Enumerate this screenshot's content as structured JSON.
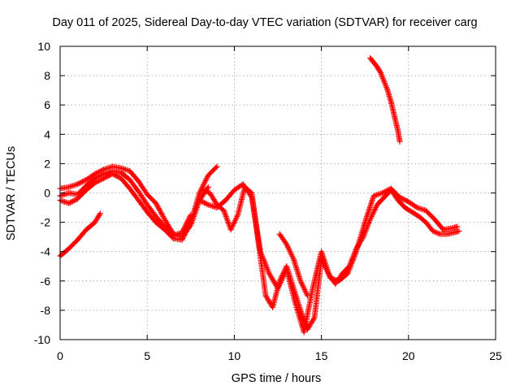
{
  "chart_data": {
    "type": "scatter",
    "title": "Day 011 of 2025, Sidereal Day-to-day VTEC variation (SDTVAR) for receiver carg",
    "xlabel": "GPS time / hours",
    "ylabel": "SDTVAR / TECUs",
    "xlim": [
      0,
      25
    ],
    "ylim": [
      -10,
      10
    ],
    "xticks": [
      "0",
      "5",
      "10",
      "15",
      "20",
      "25"
    ],
    "yticks": [
      "10",
      "8",
      "6",
      "4",
      "2",
      "0",
      "-2",
      "-4",
      "-6",
      "-8",
      "-10"
    ],
    "grid": true,
    "marker": "+",
    "color": "#ff0000",
    "series": [
      {
        "x": [
          0,
          0.5,
          1.0,
          1.5,
          2.0,
          2.3
        ],
        "y": [
          -4.3,
          -3.8,
          -3.2,
          -2.5,
          -2.0,
          -1.4
        ]
      },
      {
        "x": [
          0,
          0.5,
          1.0,
          1.5,
          2.0,
          2.5,
          3.0,
          3.5,
          4.0,
          4.5,
          5.0,
          5.5,
          6.0,
          6.5,
          7.0,
          7.5,
          8.0,
          8.5
        ],
        "y": [
          0.3,
          0.4,
          0.6,
          0.9,
          1.3,
          1.6,
          1.8,
          1.7,
          1.5,
          0.8,
          -0.1,
          -0.7,
          -1.8,
          -2.8,
          -3.0,
          -2.2,
          -0.5,
          0.4
        ]
      },
      {
        "x": [
          0,
          0.5,
          1.0,
          1.5,
          2.0,
          2.5,
          3.0,
          3.5,
          4.0,
          4.5,
          5.0,
          5.5,
          6.0,
          6.5,
          7.0,
          7.5,
          8.0,
          8.5,
          9.0
        ],
        "y": [
          -0.5,
          -0.7,
          -0.4,
          0.2,
          0.7,
          1.0,
          1.3,
          1.0,
          0.3,
          -0.5,
          -1.3,
          -2.0,
          -2.5,
          -3.1,
          -3.2,
          -2.0,
          0.0,
          1.2,
          1.8
        ]
      },
      {
        "x": [
          0,
          0.5,
          1.0,
          1.5,
          2.0,
          2.5,
          3.0,
          3.5,
          4.0,
          4.5,
          5.0,
          5.5,
          6.0,
          6.5,
          7.0,
          7.5
        ],
        "y": [
          -0.2,
          0.0,
          -0.1,
          0.5,
          1.0,
          1.3,
          1.5,
          1.4,
          0.9,
          0.1,
          -0.8,
          -1.6,
          -2.3,
          -2.9,
          -2.7,
          -1.5
        ]
      },
      {
        "x": [
          8.0,
          8.5,
          9.0,
          9.5,
          10.0,
          10.5,
          11.0,
          11.5,
          12.0,
          12.5,
          13.0,
          13.5,
          14.0,
          14.5,
          15.0,
          15.5,
          16.0,
          16.5,
          17.0,
          17.5,
          18.0,
          18.5,
          19.0,
          19.5,
          20.0,
          20.5,
          21.0,
          21.5,
          22.0,
          22.5,
          22.8
        ],
        "y": [
          -0.5,
          -0.8,
          -1.0,
          -0.5,
          0.2,
          0.6,
          -0.3,
          -4.0,
          -5.5,
          -6.5,
          -5.2,
          -7.5,
          -9.5,
          -6.5,
          -4.0,
          -5.8,
          -6.0,
          -5.5,
          -4.0,
          -2.0,
          -0.2,
          0.0,
          0.3,
          -0.3,
          -0.6,
          -1.0,
          -1.2,
          -1.8,
          -2.5,
          -2.4,
          -2.3
        ]
      },
      {
        "x": [
          8.2,
          8.6,
          9.0,
          9.4,
          9.8,
          10.2,
          10.6,
          11.0,
          11.4,
          11.8,
          12.2,
          12.6,
          13.0,
          13.4,
          13.8,
          14.2,
          14.6,
          15.0,
          15.4,
          15.8,
          16.2,
          16.6,
          17.0,
          17.4,
          17.8,
          18.2,
          18.6,
          19.0,
          19.4,
          19.8,
          20.2,
          20.6,
          21.0,
          21.4,
          21.8,
          22.2,
          22.6,
          22.9
        ],
        "y": [
          0.2,
          0.0,
          -0.8,
          -1.2,
          -2.5,
          -1.5,
          0.4,
          0.0,
          -3.5,
          -7.0,
          -7.8,
          -6.0,
          -5.0,
          -6.5,
          -8.0,
          -9.3,
          -8.5,
          -4.5,
          -5.5,
          -6.2,
          -5.5,
          -5.0,
          -3.8,
          -3.0,
          -1.8,
          -0.8,
          -0.3,
          0.2,
          -0.5,
          -1.0,
          -1.3,
          -1.6,
          -2.0,
          -2.6,
          -2.8,
          -2.8,
          -2.7,
          -2.6
        ]
      },
      {
        "x": [
          12.6,
          13.0,
          13.4,
          13.8,
          14.2
        ],
        "y": [
          -2.8,
          -3.5,
          -4.5,
          -6.0,
          -7.0
        ]
      },
      {
        "x": [
          17.8,
          18.0,
          18.2,
          18.4,
          18.6,
          18.8,
          19.0,
          19.2,
          19.4,
          19.5
        ],
        "y": [
          9.2,
          8.9,
          8.6,
          8.2,
          7.6,
          7.0,
          6.2,
          5.2,
          4.2,
          3.5
        ]
      }
    ]
  }
}
